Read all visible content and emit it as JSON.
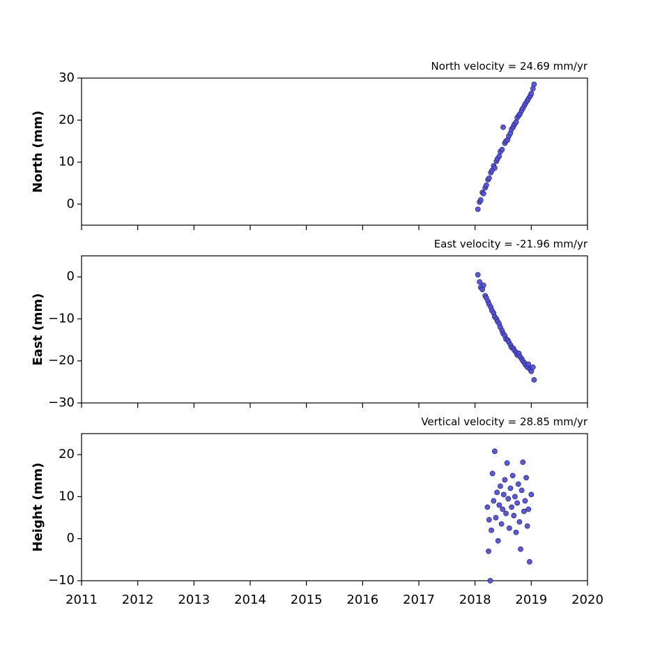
{
  "chart_data": [
    {
      "type": "scatter",
      "title": "North velocity = 24.69 mm/yr",
      "ylabel": "North (mm)",
      "color": "#4d4df2",
      "x": [
        2018.05,
        2018.08,
        2018.1,
        2018.13,
        2018.15,
        2018.18,
        2018.2,
        2018.23,
        2018.25,
        2018.28,
        2018.3,
        2018.33,
        2018.35,
        2018.38,
        2018.4,
        2018.43,
        2018.45,
        2018.48,
        2018.5,
        2018.53,
        2018.55,
        2018.58,
        2018.6,
        2018.63,
        2018.65,
        2018.68,
        2018.7,
        2018.73,
        2018.75,
        2018.78,
        2018.8,
        2018.83,
        2018.85,
        2018.88,
        2018.9,
        2018.93,
        2018.95,
        2018.98,
        2019.0,
        2019.03,
        2019.05
      ],
      "values": [
        -1.2,
        0.5,
        1.0,
        2.8,
        2.5,
        3.9,
        4.5,
        5.8,
        6.2,
        7.5,
        8.0,
        9.1,
        8.6,
        10.2,
        10.8,
        11.4,
        12.5,
        13.0,
        18.3,
        14.5,
        15.0,
        15.3,
        16.2,
        16.9,
        17.8,
        18.4,
        19.0,
        19.5,
        20.6,
        21.1,
        21.5,
        22.3,
        22.8,
        23.5,
        24.0,
        24.6,
        25.1,
        25.7,
        26.3,
        27.5,
        28.5
      ],
      "xlim": [
        2011,
        2020
      ],
      "xticks": [
        2011,
        2012,
        2013,
        2014,
        2015,
        2016,
        2017,
        2018,
        2019,
        2020
      ],
      "ylim": [
        -5,
        30
      ],
      "yticks": [
        0,
        10,
        20,
        30
      ]
    },
    {
      "type": "scatter",
      "title": "East velocity = -21.96 mm/yr",
      "ylabel": "East (mm)",
      "color": "#4d4df2",
      "x": [
        2018.05,
        2018.08,
        2018.1,
        2018.13,
        2018.15,
        2018.18,
        2018.2,
        2018.23,
        2018.25,
        2018.28,
        2018.3,
        2018.33,
        2018.35,
        2018.38,
        2018.4,
        2018.43,
        2018.45,
        2018.48,
        2018.5,
        2018.53,
        2018.55,
        2018.58,
        2018.6,
        2018.63,
        2018.65,
        2018.68,
        2018.7,
        2018.73,
        2018.75,
        2018.78,
        2018.8,
        2018.83,
        2018.85,
        2018.88,
        2018.9,
        2018.93,
        2018.95,
        2018.98,
        2019.0,
        2019.03,
        2019.05
      ],
      "values": [
        0.5,
        -1.2,
        -2.5,
        -3.0,
        -2.0,
        -4.5,
        -5.0,
        -5.8,
        -6.5,
        -7.2,
        -8.0,
        -8.6,
        -9.5,
        -10.0,
        -10.6,
        -11.2,
        -12.0,
        -12.8,
        -13.5,
        -14.0,
        -14.8,
        -15.0,
        -15.5,
        -16.2,
        -16.8,
        -17.0,
        -17.5,
        -18.0,
        -18.6,
        -18.2,
        -19.0,
        -19.5,
        -20.0,
        -20.5,
        -21.0,
        -21.5,
        -20.8,
        -22.0,
        -22.5,
        -21.5,
        -24.5
      ],
      "xlim": [
        2011,
        2020
      ],
      "xticks": [
        2011,
        2012,
        2013,
        2014,
        2015,
        2016,
        2017,
        2018,
        2019,
        2020
      ],
      "ylim": [
        -30,
        5
      ],
      "yticks": [
        {
          "value": -30,
          "label": "−30"
        },
        {
          "value": -20,
          "label": "−20"
        },
        {
          "value": -10,
          "label": "−10"
        },
        0
      ]
    },
    {
      "type": "scatter",
      "title": "Vertical velocity = 28.85 mm/yr",
      "ylabel": "Height (mm)",
      "color": "#4d4df2",
      "x": [
        2018.22,
        2018.24,
        2018.25,
        2018.27,
        2018.29,
        2018.31,
        2018.33,
        2018.35,
        2018.37,
        2018.39,
        2018.41,
        2018.43,
        2018.45,
        2018.47,
        2018.49,
        2018.51,
        2018.53,
        2018.55,
        2018.57,
        2018.59,
        2018.61,
        2018.63,
        2018.65,
        2018.67,
        2018.69,
        2018.71,
        2018.73,
        2018.75,
        2018.77,
        2018.79,
        2018.81,
        2018.83,
        2018.85,
        2018.87,
        2018.89,
        2018.91,
        2018.93,
        2018.95,
        2018.97,
        2019.0
      ],
      "values": [
        7.5,
        -3.0,
        4.5,
        -10.0,
        2.0,
        15.5,
        9.0,
        20.8,
        5.0,
        11.0,
        -0.5,
        8.0,
        12.5,
        3.5,
        7.0,
        10.5,
        14.0,
        6.0,
        18.0,
        9.5,
        2.5,
        12.0,
        7.5,
        15.0,
        5.5,
        10.0,
        1.5,
        8.5,
        13.0,
        4.0,
        -2.5,
        11.5,
        18.2,
        6.5,
        9.0,
        14.5,
        3.0,
        7.0,
        -5.5,
        10.5
      ],
      "xlim": [
        2011,
        2020
      ],
      "xticks": [
        {
          "value": 2011,
          "label": "2011"
        },
        {
          "value": 2012,
          "label": "2012"
        },
        {
          "value": 2013,
          "label": "2013"
        },
        {
          "value": 2014,
          "label": "2014"
        },
        {
          "value": 2015,
          "label": "2015"
        },
        {
          "value": 2016,
          "label": "2016"
        },
        {
          "value": 2017,
          "label": "2017"
        },
        {
          "value": 2018,
          "label": "2018"
        },
        {
          "value": 2019,
          "label": "2019"
        },
        {
          "value": 2020,
          "label": "2020"
        }
      ],
      "ylim": [
        -10,
        25
      ],
      "yticks": [
        {
          "value": -10,
          "label": "−10"
        },
        0,
        10,
        20
      ]
    }
  ]
}
